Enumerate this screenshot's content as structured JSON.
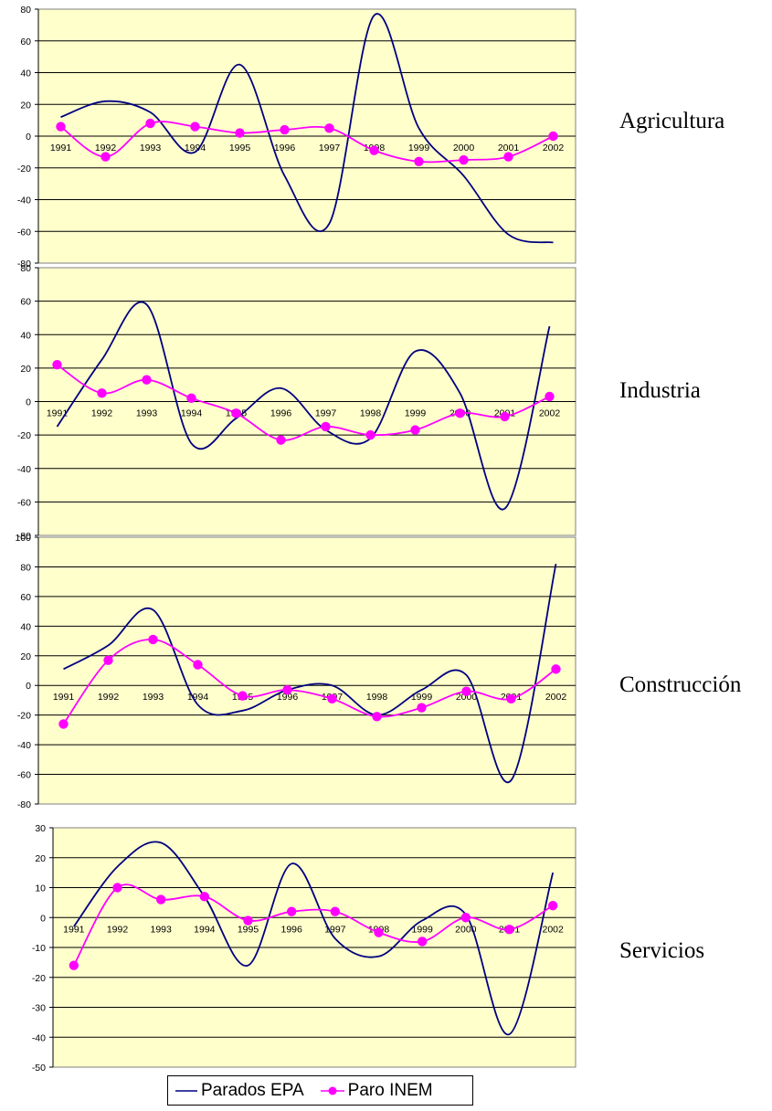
{
  "colors": {
    "epa": "#000080",
    "inem": "#ff00ff",
    "plot_bg": "#ffffcc",
    "grid": "#000000"
  },
  "legend": {
    "epa_label": "Parados EPA",
    "inem_label": "Paro INEM"
  },
  "chart_data": [
    {
      "type": "line",
      "sector_label": "Agricultura",
      "categories": [
        "1991",
        "1992",
        "1993",
        "1994",
        "1995",
        "1996",
        "1997",
        "1998",
        "1999",
        "2000",
        "2001",
        "2002"
      ],
      "ylim": [
        -80,
        80
      ],
      "yticks": [
        80,
        60,
        40,
        20,
        0,
        -20,
        -40,
        -60,
        -80
      ],
      "grid": true,
      "series": [
        {
          "name": "Parados EPA",
          "values": [
            12,
            22,
            15,
            -10,
            45,
            -25,
            -55,
            76,
            5,
            -25,
            -62,
            -67
          ]
        },
        {
          "name": "Paro INEM",
          "values": [
            6,
            -13,
            8,
            6,
            2,
            4,
            5,
            -9,
            -16,
            -15,
            -13,
            0
          ]
        }
      ]
    },
    {
      "type": "line",
      "sector_label": "Industria",
      "categories": [
        "1991",
        "1992",
        "1993",
        "1994",
        "1995",
        "1996",
        "1997",
        "1998",
        "1999",
        "2000",
        "2001",
        "2002"
      ],
      "ylim": [
        -80,
        80
      ],
      "yticks": [
        80,
        60,
        40,
        20,
        0,
        -20,
        -40,
        -60,
        -80
      ],
      "grid": true,
      "series": [
        {
          "name": "Parados EPA",
          "values": [
            -15,
            25,
            58,
            -25,
            -10,
            8,
            -17,
            -22,
            30,
            5,
            -64,
            45
          ]
        },
        {
          "name": "Paro INEM",
          "values": [
            22,
            5,
            13,
            2,
            -7,
            -23,
            -15,
            -20,
            -17,
            -7,
            -9,
            3
          ]
        }
      ]
    },
    {
      "type": "line",
      "sector_label": "Construcción",
      "categories": [
        "1991",
        "1992",
        "1993",
        "1994",
        "1995",
        "1996",
        "1997",
        "1998",
        "1999",
        "2000",
        "2001",
        "2002"
      ],
      "ylim": [
        -80,
        100
      ],
      "yticks": [
        100,
        80,
        60,
        40,
        20,
        0,
        -20,
        -40,
        -60,
        -80
      ],
      "grid": true,
      "series": [
        {
          "name": "Parados EPA",
          "values": [
            11,
            27,
            51,
            -13,
            -17,
            -3,
            0,
            -20,
            -3,
            7,
            -64,
            82
          ]
        },
        {
          "name": "Paro INEM",
          "values": [
            -26,
            17,
            31,
            14,
            -7,
            -3,
            -9,
            -21,
            -15,
            -4,
            -9,
            11
          ]
        }
      ]
    },
    {
      "type": "line",
      "sector_label": "Servicios",
      "categories": [
        "1991",
        "1992",
        "1993",
        "1994",
        "1995",
        "1996",
        "1997",
        "1998",
        "1999",
        "2000",
        "2001",
        "2002"
      ],
      "ylim": [
        -50,
        30
      ],
      "yticks": [
        30,
        20,
        10,
        0,
        -10,
        -20,
        -30,
        -40,
        -50
      ],
      "grid": true,
      "series": [
        {
          "name": "Parados EPA",
          "values": [
            -3,
            17,
            25,
            7,
            -16,
            18,
            -7,
            -13,
            -1,
            1,
            -39,
            15
          ]
        },
        {
          "name": "Paro INEM",
          "values": [
            -16,
            10,
            6,
            7,
            -1,
            2,
            2,
            -5,
            -8,
            0,
            -4,
            4
          ]
        }
      ]
    }
  ]
}
